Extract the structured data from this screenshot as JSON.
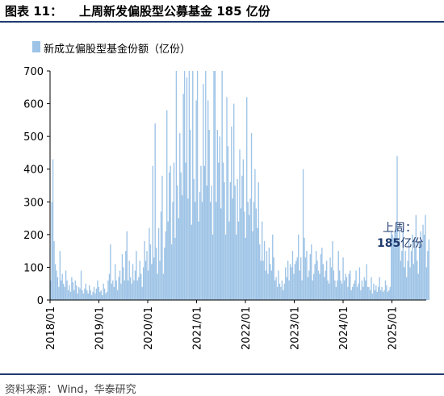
{
  "header": {
    "figure_label": "图表 11：",
    "title": "上周新发偏股型公募基金 185 亿份"
  },
  "footer": {
    "source": "资料来源：Wind，华泰研究"
  },
  "colors": {
    "bar": "#9dc3e6",
    "rule": "#1f3a6e",
    "axis": "#000000"
  },
  "chart_data": {
    "type": "bar",
    "series": [
      {
        "name": "新成立偏股型基金份额（亿份）",
        "start": "2018-01",
        "frequency": "weekly",
        "values": [
          60,
          300,
          430,
          180,
          110,
          90,
          70,
          40,
          150,
          60,
          80,
          50,
          40,
          90,
          60,
          30,
          45,
          25,
          70,
          55,
          30,
          60,
          45,
          20,
          40,
          35,
          90,
          30,
          20,
          35,
          50,
          30,
          20,
          45,
          30,
          15,
          25,
          40,
          20,
          35,
          60,
          40,
          25,
          30,
          15,
          50,
          35,
          20,
          25,
          60,
          80,
          170,
          50,
          60,
          40,
          110,
          60,
          30,
          70,
          90,
          50,
          140,
          100,
          60,
          150,
          210,
          60,
          120,
          70,
          50,
          110,
          60,
          90,
          150,
          60,
          70,
          120,
          80,
          40,
          100,
          180,
          120,
          150,
          90,
          220,
          170,
          110,
          410,
          130,
          540,
          160,
          80,
          220,
          120,
          270,
          380,
          80,
          160,
          210,
          580,
          240,
          390,
          410,
          170,
          300,
          420,
          190,
          700,
          350,
          250,
          510,
          390,
          320,
          630,
          700,
          420,
          680,
          310,
          700,
          520,
          230,
          700,
          370,
          300,
          610,
          700,
          240,
          330,
          410,
          300,
          660,
          410,
          700,
          350,
          610,
          520,
          300,
          350,
          200,
          700,
          700,
          300,
          520,
          420,
          500,
          280,
          700,
          420,
          360,
          200,
          620,
          470,
          240,
          360,
          530,
          310,
          600,
          350,
          200,
          370,
          240,
          460,
          280,
          380,
          430,
          270,
          190,
          620,
          300,
          260,
          310,
          510,
          210,
          300,
          400,
          280,
          220,
          360,
          170,
          120,
          240,
          120,
          180,
          90,
          150,
          80,
          160,
          110,
          90,
          200,
          130,
          60,
          70,
          40,
          90,
          50,
          40,
          60,
          30,
          50,
          100,
          70,
          120,
          60,
          110,
          100,
          150,
          80,
          110,
          120,
          130,
          200,
          90,
          130,
          60,
          400,
          190,
          130,
          150,
          70,
          90,
          140,
          170,
          60,
          80,
          110,
          150,
          120,
          90,
          80,
          140,
          160,
          110,
          70,
          90,
          120,
          60,
          50,
          130,
          100,
          180,
          90,
          60,
          40,
          60,
          150,
          90,
          60,
          50,
          130,
          60,
          80,
          70,
          40,
          80,
          90,
          30,
          40,
          50,
          60,
          90,
          40,
          50,
          100,
          30,
          60,
          40,
          70,
          60,
          110,
          40,
          40,
          30,
          70,
          20,
          50,
          30,
          45,
          25,
          40,
          70,
          30,
          40,
          25,
          30,
          60,
          45,
          25,
          30,
          40,
          210,
          200,
          190,
          210,
          220,
          440,
          180,
          210,
          120,
          150,
          220,
          100,
          150,
          70,
          120,
          180,
          100,
          150,
          200,
          110,
          160,
          260,
          120,
          80,
          180,
          210,
          170,
          230,
          200,
          260,
          100,
          150,
          185
        ]
      }
    ],
    "xlabel": "",
    "ylabel": "",
    "ylim": [
      0,
      700
    ],
    "yticks": [
      0,
      100,
      200,
      300,
      400,
      500,
      600,
      700
    ],
    "x_ticks": [
      "2018/01",
      "2019/01",
      "2020/01",
      "2021/01",
      "2022/01",
      "2023/01",
      "2024/01",
      "2025/01"
    ],
    "grid": false,
    "legend_position": "top-left",
    "annotation": {
      "line1": "上周：",
      "line2_value": "185",
      "line2_unit": "亿份"
    }
  }
}
